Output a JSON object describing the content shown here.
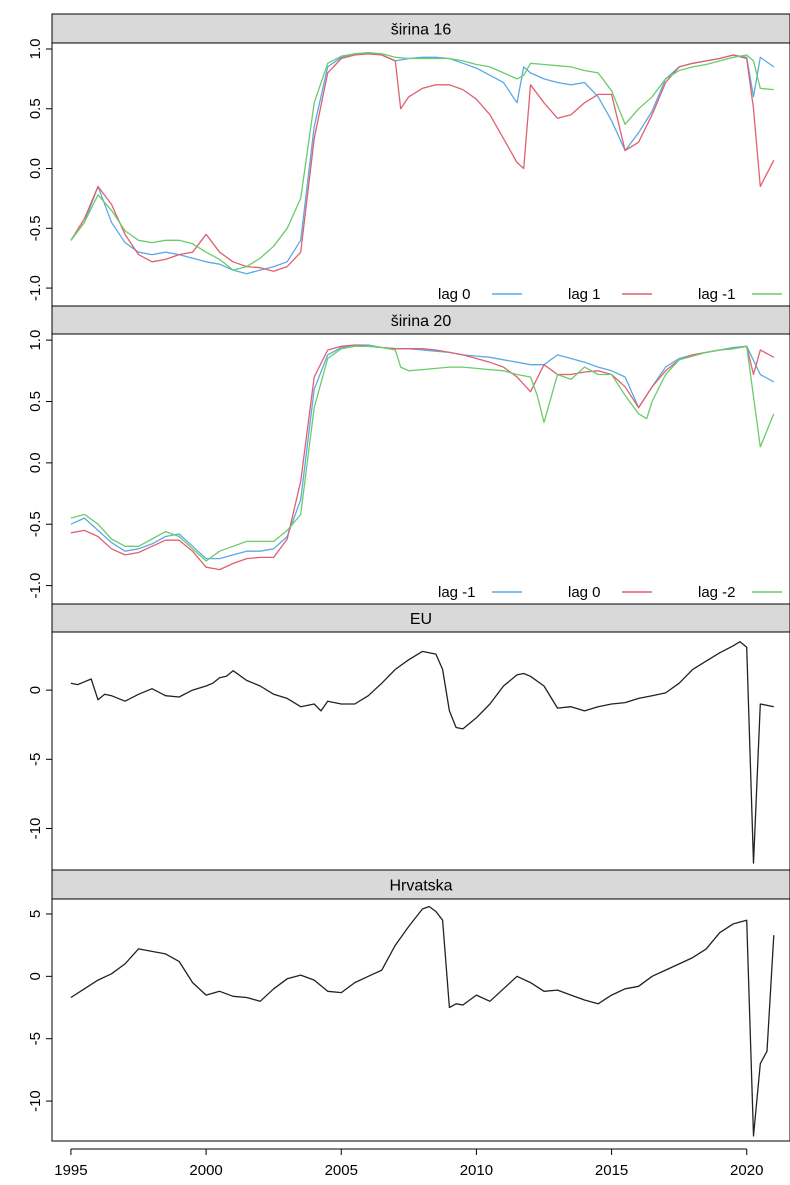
{
  "chart_data": [
    {
      "type": "line",
      "title": "širina 16",
      "ylim": [
        -1.15,
        1.05
      ],
      "yticks": [
        -1.0,
        -0.5,
        0.0,
        0.5,
        1.0
      ],
      "ytick_labels": [
        "-1.0",
        "-0.5",
        "0.0",
        "0.5",
        "1.0"
      ],
      "legend": "bottom-right",
      "series": [
        {
          "name": "lag 0",
          "color": "#5aaae6",
          "x": [
            1995.0,
            1995.5,
            1996.0,
            1996.5,
            1997.0,
            1997.5,
            1998.0,
            1998.5,
            1999.0,
            1999.5,
            2000.0,
            2000.5,
            2001.0,
            2001.5,
            2002.0,
            2002.5,
            2003.0,
            2003.5,
            2004.0,
            2004.5,
            2005.0,
            2005.5,
            2006.0,
            2006.5,
            2007.0,
            2007.5,
            2008.0,
            2008.5,
            2009.0,
            2009.5,
            2010.0,
            2010.5,
            2011.0,
            2011.5,
            2011.75,
            2012.0,
            2012.5,
            2013.0,
            2013.5,
            2014.0,
            2014.5,
            2015.0,
            2015.5,
            2016.0,
            2016.5,
            2017.0,
            2017.5,
            2018.0,
            2018.5,
            2019.0,
            2019.5,
            2020.0,
            2020.25,
            2020.5,
            2021.0
          ],
          "y": [
            -0.6,
            -0.45,
            -0.15,
            -0.45,
            -0.62,
            -0.7,
            -0.72,
            -0.7,
            -0.72,
            -0.75,
            -0.78,
            -0.8,
            -0.85,
            -0.88,
            -0.85,
            -0.82,
            -0.78,
            -0.6,
            0.35,
            0.85,
            0.93,
            0.96,
            0.97,
            0.95,
            0.9,
            0.92,
            0.93,
            0.93,
            0.92,
            0.88,
            0.84,
            0.78,
            0.72,
            0.55,
            0.85,
            0.8,
            0.75,
            0.72,
            0.7,
            0.72,
            0.6,
            0.4,
            0.15,
            0.3,
            0.48,
            0.75,
            0.85,
            0.88,
            0.9,
            0.92,
            0.95,
            0.93,
            0.6,
            0.93,
            0.85
          ]
        },
        {
          "name": "lag 1",
          "color": "#e06070",
          "x": [
            1995.0,
            1995.5,
            1996.0,
            1996.5,
            1997.0,
            1997.5,
            1998.0,
            1998.5,
            1999.0,
            1999.5,
            2000.0,
            2000.5,
            2001.0,
            2001.5,
            2002.0,
            2002.5,
            2003.0,
            2003.5,
            2004.0,
            2004.5,
            2005.0,
            2005.5,
            2006.0,
            2006.5,
            2007.0,
            2007.2,
            2007.5,
            2008.0,
            2008.5,
            2009.0,
            2009.5,
            2010.0,
            2010.5,
            2011.0,
            2011.5,
            2011.75,
            2012.0,
            2012.5,
            2013.0,
            2013.5,
            2014.0,
            2014.5,
            2015.0,
            2015.5,
            2016.0,
            2016.5,
            2017.0,
            2017.5,
            2018.0,
            2018.5,
            2019.0,
            2019.5,
            2020.0,
            2020.25,
            2020.5,
            2021.0
          ],
          "y": [
            -0.6,
            -0.42,
            -0.15,
            -0.3,
            -0.55,
            -0.72,
            -0.78,
            -0.76,
            -0.72,
            -0.7,
            -0.55,
            -0.7,
            -0.78,
            -0.82,
            -0.83,
            -0.86,
            -0.82,
            -0.7,
            0.25,
            0.8,
            0.92,
            0.95,
            0.96,
            0.95,
            0.9,
            0.5,
            0.6,
            0.67,
            0.7,
            0.7,
            0.66,
            0.58,
            0.45,
            0.25,
            0.05,
            0.0,
            0.7,
            0.55,
            0.42,
            0.45,
            0.55,
            0.62,
            0.62,
            0.15,
            0.22,
            0.45,
            0.72,
            0.85,
            0.88,
            0.9,
            0.92,
            0.95,
            0.92,
            0.5,
            -0.15,
            0.07
          ]
        },
        {
          "name": "lag  -1",
          "color": "#6acc6a",
          "x": [
            1995.0,
            1995.5,
            1996.0,
            1996.5,
            1997.0,
            1997.5,
            1998.0,
            1998.5,
            1999.0,
            1999.5,
            2000.0,
            2000.5,
            2001.0,
            2001.5,
            2002.0,
            2002.5,
            2003.0,
            2003.5,
            2004.0,
            2004.5,
            2005.0,
            2005.5,
            2006.0,
            2006.5,
            2007.0,
            2007.5,
            2008.0,
            2008.5,
            2009.0,
            2009.5,
            2010.0,
            2010.5,
            2011.0,
            2011.5,
            2011.75,
            2012.0,
            2012.5,
            2013.0,
            2013.5,
            2014.0,
            2014.5,
            2015.0,
            2015.5,
            2016.0,
            2016.5,
            2017.0,
            2017.5,
            2018.0,
            2018.5,
            2019.0,
            2019.5,
            2020.0,
            2020.25,
            2020.5,
            2021.0
          ],
          "y": [
            -0.6,
            -0.45,
            -0.22,
            -0.35,
            -0.52,
            -0.6,
            -0.62,
            -0.6,
            -0.6,
            -0.63,
            -0.7,
            -0.76,
            -0.85,
            -0.82,
            -0.75,
            -0.65,
            -0.5,
            -0.25,
            0.55,
            0.88,
            0.94,
            0.96,
            0.97,
            0.96,
            0.93,
            0.92,
            0.92,
            0.92,
            0.92,
            0.9,
            0.87,
            0.85,
            0.8,
            0.75,
            0.78,
            0.88,
            0.87,
            0.86,
            0.85,
            0.82,
            0.8,
            0.65,
            0.37,
            0.5,
            0.6,
            0.75,
            0.82,
            0.85,
            0.87,
            0.9,
            0.93,
            0.95,
            0.9,
            0.67,
            0.66
          ]
        }
      ]
    },
    {
      "type": "line",
      "title": "širina 20",
      "ylim": [
        -1.15,
        1.05
      ],
      "yticks": [
        -1.0,
        -0.5,
        0.0,
        0.5,
        1.0
      ],
      "ytick_labels": [
        "-1.0",
        "-0.5",
        "0.0",
        "0.5",
        "1.0"
      ],
      "legend": "bottom-right",
      "series": [
        {
          "name": "lag -1",
          "color": "#5aaae6",
          "x": [
            1995.0,
            1995.5,
            1996.0,
            1996.5,
            1997.0,
            1997.5,
            1998.0,
            1998.5,
            1999.0,
            1999.5,
            2000.0,
            2000.5,
            2001.0,
            2001.5,
            2002.0,
            2002.5,
            2003.0,
            2003.5,
            2004.0,
            2004.5,
            2005.0,
            2005.5,
            2006.0,
            2006.5,
            2007.0,
            2007.5,
            2008.0,
            2008.5,
            2009.0,
            2009.5,
            2010.0,
            2010.5,
            2011.0,
            2011.5,
            2012.0,
            2012.5,
            2013.0,
            2013.5,
            2014.0,
            2014.5,
            2015.0,
            2015.5,
            2016.0,
            2016.5,
            2017.0,
            2017.5,
            2018.0,
            2018.5,
            2019.0,
            2019.5,
            2020.0,
            2020.5,
            2021.0
          ],
          "y": [
            -0.5,
            -0.45,
            -0.55,
            -0.65,
            -0.72,
            -0.7,
            -0.66,
            -0.6,
            -0.58,
            -0.68,
            -0.78,
            -0.78,
            -0.75,
            -0.72,
            -0.72,
            -0.7,
            -0.6,
            -0.3,
            0.6,
            0.88,
            0.94,
            0.96,
            0.96,
            0.94,
            0.93,
            0.93,
            0.92,
            0.91,
            0.9,
            0.88,
            0.87,
            0.86,
            0.84,
            0.82,
            0.8,
            0.8,
            0.88,
            0.85,
            0.82,
            0.78,
            0.75,
            0.7,
            0.45,
            0.62,
            0.78,
            0.85,
            0.88,
            0.9,
            0.92,
            0.94,
            0.95,
            0.72,
            0.66
          ]
        },
        {
          "name": "lag 0",
          "color": "#e06070",
          "x": [
            1995.0,
            1995.5,
            1996.0,
            1996.5,
            1997.0,
            1997.5,
            1998.0,
            1998.5,
            1999.0,
            1999.5,
            2000.0,
            2000.5,
            2001.0,
            2001.5,
            2002.0,
            2002.5,
            2003.0,
            2003.5,
            2004.0,
            2004.5,
            2005.0,
            2005.5,
            2006.0,
            2006.5,
            2007.0,
            2007.5,
            2008.0,
            2008.5,
            2009.0,
            2009.5,
            2010.0,
            2010.5,
            2011.0,
            2011.5,
            2012.0,
            2012.5,
            2013.0,
            2013.5,
            2014.0,
            2014.5,
            2015.0,
            2015.5,
            2016.0,
            2016.5,
            2017.0,
            2017.5,
            2018.0,
            2018.5,
            2019.0,
            2019.5,
            2020.0,
            2020.25,
            2020.5,
            2021.0
          ],
          "y": [
            -0.57,
            -0.55,
            -0.6,
            -0.7,
            -0.75,
            -0.73,
            -0.68,
            -0.63,
            -0.63,
            -0.72,
            -0.85,
            -0.87,
            -0.82,
            -0.78,
            -0.77,
            -0.77,
            -0.62,
            -0.15,
            0.7,
            0.92,
            0.95,
            0.96,
            0.95,
            0.94,
            0.93,
            0.93,
            0.93,
            0.92,
            0.9,
            0.88,
            0.85,
            0.82,
            0.78,
            0.7,
            0.58,
            0.8,
            0.72,
            0.72,
            0.74,
            0.75,
            0.72,
            0.62,
            0.45,
            0.62,
            0.75,
            0.84,
            0.88,
            0.9,
            0.92,
            0.93,
            0.95,
            0.72,
            0.92,
            0.86
          ]
        },
        {
          "name": "lag  -2",
          "color": "#6acc6a",
          "x": [
            1995.0,
            1995.5,
            1996.0,
            1996.5,
            1997.0,
            1997.5,
            1998.0,
            1998.5,
            1999.0,
            1999.5,
            2000.0,
            2000.5,
            2001.0,
            2001.5,
            2002.0,
            2002.5,
            2003.0,
            2003.5,
            2004.0,
            2004.5,
            2005.0,
            2005.5,
            2006.0,
            2006.5,
            2007.0,
            2007.2,
            2007.5,
            2008.0,
            2008.5,
            2009.0,
            2009.5,
            2010.0,
            2010.5,
            2011.0,
            2011.5,
            2012.0,
            2012.25,
            2012.5,
            2013.0,
            2013.5,
            2014.0,
            2014.5,
            2015.0,
            2015.5,
            2016.0,
            2016.3,
            2016.5,
            2017.0,
            2017.5,
            2018.0,
            2018.5,
            2019.0,
            2019.5,
            2020.0,
            2020.5,
            2021.0
          ],
          "y": [
            -0.45,
            -0.42,
            -0.5,
            -0.62,
            -0.68,
            -0.68,
            -0.62,
            -0.56,
            -0.6,
            -0.7,
            -0.8,
            -0.72,
            -0.68,
            -0.64,
            -0.64,
            -0.64,
            -0.55,
            -0.42,
            0.45,
            0.85,
            0.93,
            0.95,
            0.95,
            0.94,
            0.92,
            0.78,
            0.75,
            0.76,
            0.77,
            0.78,
            0.78,
            0.77,
            0.76,
            0.75,
            0.72,
            0.7,
            0.55,
            0.33,
            0.72,
            0.68,
            0.78,
            0.72,
            0.72,
            0.55,
            0.4,
            0.36,
            0.5,
            0.72,
            0.84,
            0.87,
            0.9,
            0.92,
            0.93,
            0.95,
            0.13,
            0.4
          ]
        }
      ]
    },
    {
      "type": "line",
      "title": "EU",
      "ylim": [
        -13.0,
        4.2
      ],
      "yticks": [
        -10,
        -5,
        0
      ],
      "ytick_labels": [
        "-10",
        "-5",
        "0"
      ],
      "series": [
        {
          "color": "#222222",
          "x": [
            1995.0,
            1995.25,
            1995.5,
            1995.75,
            1996.0,
            1996.25,
            1996.5,
            1997.0,
            1997.5,
            1998.0,
            1998.5,
            1999.0,
            1999.5,
            2000.0,
            2000.25,
            2000.5,
            2000.75,
            2001.0,
            2001.5,
            2002.0,
            2002.5,
            2003.0,
            2003.5,
            2004.0,
            2004.25,
            2004.5,
            2005.0,
            2005.5,
            2006.0,
            2006.5,
            2007.0,
            2007.5,
            2008.0,
            2008.25,
            2008.5,
            2008.75,
            2009.0,
            2009.25,
            2009.5,
            2010.0,
            2010.5,
            2011.0,
            2011.5,
            2011.75,
            2012.0,
            2012.5,
            2013.0,
            2013.5,
            2014.0,
            2014.5,
            2015.0,
            2015.5,
            2016.0,
            2016.5,
            2017.0,
            2017.5,
            2018.0,
            2018.5,
            2019.0,
            2019.5,
            2019.75,
            2020.0,
            2020.25,
            2020.5,
            2021.0
          ],
          "y": [
            0.5,
            0.4,
            0.6,
            0.8,
            -0.7,
            -0.3,
            -0.4,
            -0.8,
            -0.3,
            0.1,
            -0.4,
            -0.5,
            0.0,
            0.3,
            0.5,
            0.9,
            1.0,
            1.4,
            0.7,
            0.3,
            -0.3,
            -0.6,
            -1.2,
            -1.0,
            -1.5,
            -0.8,
            -1.0,
            -1.0,
            -0.4,
            0.5,
            1.5,
            2.2,
            2.8,
            2.7,
            2.6,
            1.5,
            -1.5,
            -2.7,
            -2.8,
            -2.0,
            -1.0,
            0.3,
            1.1,
            1.2,
            1.0,
            0.3,
            -1.3,
            -1.2,
            -1.5,
            -1.2,
            -1.0,
            -0.9,
            -0.6,
            -0.4,
            -0.2,
            0.5,
            1.5,
            2.1,
            2.7,
            3.2,
            3.5,
            3.1,
            -12.5,
            -1.0,
            -1.2
          ]
        }
      ]
    },
    {
      "type": "line",
      "title": "Hrvatska",
      "ylim": [
        -13.2,
        6.2
      ],
      "yticks": [
        -10,
        -5,
        0,
        5
      ],
      "ytick_labels": [
        "-10",
        "-5",
        "0",
        "5"
      ],
      "xlim": [
        1994.3,
        2021.6
      ],
      "xticks": [
        1995,
        2000,
        2005,
        2010,
        2015,
        2020
      ],
      "xtick_labels": [
        "1995",
        "2000",
        "2005",
        "2010",
        "2015",
        "2020"
      ],
      "series": [
        {
          "color": "#222222",
          "x": [
            1995.0,
            1995.5,
            1996.0,
            1996.5,
            1997.0,
            1997.5,
            1998.0,
            1998.5,
            1999.0,
            1999.5,
            2000.0,
            2000.5,
            2001.0,
            2001.5,
            2002.0,
            2002.5,
            2003.0,
            2003.5,
            2004.0,
            2004.5,
            2005.0,
            2005.5,
            2006.0,
            2006.5,
            2007.0,
            2007.5,
            2008.0,
            2008.25,
            2008.5,
            2008.75,
            2009.0,
            2009.25,
            2009.5,
            2010.0,
            2010.5,
            2011.0,
            2011.5,
            2012.0,
            2012.5,
            2013.0,
            2013.5,
            2014.0,
            2014.5,
            2015.0,
            2015.5,
            2016.0,
            2016.5,
            2017.0,
            2017.5,
            2018.0,
            2018.5,
            2019.0,
            2019.5,
            2020.0,
            2020.25,
            2020.5,
            2020.75,
            2021.0
          ],
          "y": [
            -1.7,
            -1.0,
            -0.3,
            0.2,
            1.0,
            2.2,
            2.0,
            1.8,
            1.2,
            -0.5,
            -1.5,
            -1.2,
            -1.6,
            -1.7,
            -2.0,
            -1.0,
            -0.2,
            0.1,
            -0.3,
            -1.2,
            -1.3,
            -0.5,
            0.0,
            0.5,
            2.5,
            4.0,
            5.4,
            5.6,
            5.2,
            4.5,
            -2.5,
            -2.2,
            -2.3,
            -1.5,
            -2.0,
            -1.0,
            0.0,
            -0.5,
            -1.2,
            -1.1,
            -1.5,
            -1.9,
            -2.2,
            -1.5,
            -1.0,
            -0.8,
            0.0,
            0.5,
            1.0,
            1.5,
            2.2,
            3.5,
            4.2,
            4.5,
            -12.8,
            -7.0,
            -6.0,
            3.3
          ]
        }
      ]
    }
  ]
}
